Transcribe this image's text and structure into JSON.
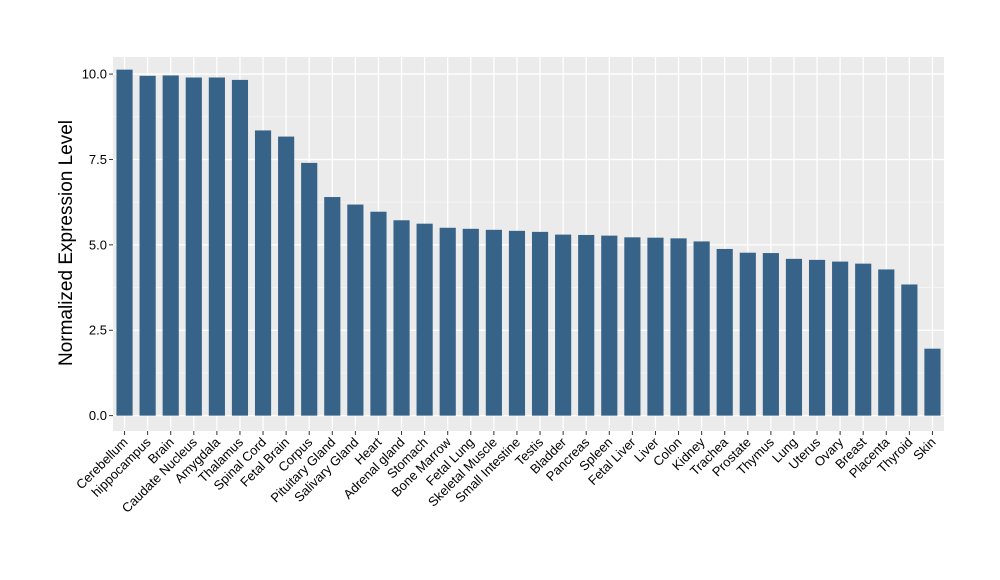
{
  "chart_data": {
    "type": "bar",
    "title": "",
    "xlabel": "",
    "ylabel": "Normalized Expression Level",
    "ylim": [
      -0.45,
      10.5
    ],
    "yticks": [
      0.0,
      2.5,
      5.0,
      7.5,
      10.0
    ],
    "ytick_labels": [
      "0.0",
      "2.5",
      "5.0",
      "7.5",
      "10.0"
    ],
    "grid": true,
    "legend": "none",
    "colors": {
      "bar": "#376389",
      "panel": "#ebebeb",
      "grid_major": "#ffffff",
      "grid_minor": "#f5f5f5",
      "tick": "#333333"
    },
    "categories": [
      "Cerebellum",
      "hippocampus",
      "Brain",
      "Caudate Nucleus",
      "Amygdala",
      "Thalamus",
      "Spinal Cord",
      "Fetal Brain",
      "Corpus",
      "Pituitary Gland",
      "Salivary Gland",
      "Heart",
      "Adrenal gland",
      "Stomach",
      "Bone Marrow",
      "Fetal Lung",
      "Skeletal Muscle",
      "Small Intestine",
      "Testis",
      "Bladder",
      "Pancreas",
      "Spleen",
      "Fetal Liver",
      "Liver",
      "Colon",
      "Kidney",
      "Trachea",
      "Prostate",
      "Thymus",
      "Lung",
      "Uterus",
      "Ovary",
      "Breast",
      "Placenta",
      "Thyroid",
      "Skin"
    ],
    "values": [
      10.13,
      9.95,
      9.96,
      9.9,
      9.9,
      9.83,
      8.35,
      8.17,
      7.4,
      6.4,
      6.18,
      5.97,
      5.72,
      5.62,
      5.5,
      5.47,
      5.44,
      5.41,
      5.38,
      5.3,
      5.29,
      5.27,
      5.22,
      5.21,
      5.19,
      5.1,
      4.88,
      4.77,
      4.76,
      4.59,
      4.56,
      4.51,
      4.45,
      4.28,
      3.84,
      1.96
    ]
  }
}
